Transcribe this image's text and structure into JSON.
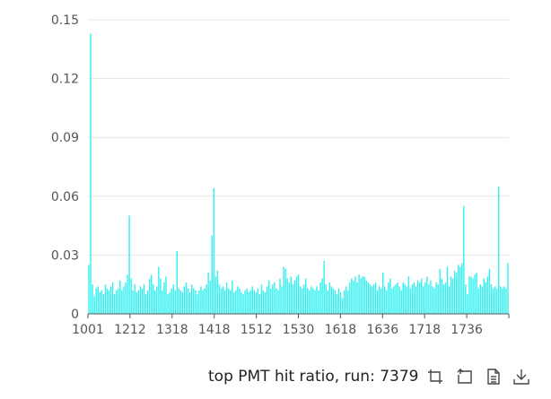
{
  "chart_data": {
    "type": "bar",
    "y_ticks": [
      "0",
      "0.03",
      "0.06",
      "0.09",
      "0.12",
      "0.15"
    ],
    "ylim": [
      0,
      0.15
    ],
    "x_tick_labels": [
      "1001",
      "1212",
      "1318",
      "1418",
      "1512",
      "1530",
      "1618",
      "1636",
      "1718",
      "1736"
    ],
    "bar_color": "#33f0f0",
    "grid": true,
    "values": [
      0.025,
      0.143,
      0.015,
      0.009,
      0.013,
      0.014,
      0.011,
      0.012,
      0.01,
      0.015,
      0.013,
      0.012,
      0.014,
      0.016,
      0.01,
      0.012,
      0.013,
      0.017,
      0.012,
      0.014,
      0.016,
      0.02,
      0.05,
      0.018,
      0.012,
      0.015,
      0.011,
      0.012,
      0.014,
      0.013,
      0.015,
      0.01,
      0.012,
      0.018,
      0.02,
      0.015,
      0.012,
      0.014,
      0.024,
      0.018,
      0.012,
      0.016,
      0.019,
      0.01,
      0.011,
      0.013,
      0.015,
      0.012,
      0.032,
      0.013,
      0.012,
      0.011,
      0.014,
      0.016,
      0.013,
      0.011,
      0.015,
      0.013,
      0.012,
      0.01,
      0.012,
      0.014,
      0.012,
      0.013,
      0.015,
      0.021,
      0.017,
      0.04,
      0.064,
      0.019,
      0.022,
      0.015,
      0.013,
      0.014,
      0.012,
      0.016,
      0.013,
      0.012,
      0.017,
      0.011,
      0.012,
      0.014,
      0.013,
      0.011,
      0.01,
      0.012,
      0.013,
      0.011,
      0.012,
      0.014,
      0.012,
      0.011,
      0.013,
      0.01,
      0.015,
      0.012,
      0.011,
      0.014,
      0.017,
      0.013,
      0.015,
      0.016,
      0.013,
      0.012,
      0.018,
      0.014,
      0.024,
      0.023,
      0.018,
      0.016,
      0.019,
      0.015,
      0.017,
      0.019,
      0.02,
      0.014,
      0.013,
      0.015,
      0.018,
      0.013,
      0.012,
      0.014,
      0.013,
      0.012,
      0.014,
      0.012,
      0.016,
      0.018,
      0.027,
      0.015,
      0.012,
      0.016,
      0.014,
      0.013,
      0.012,
      0.01,
      0.013,
      0.011,
      0.008,
      0.012,
      0.014,
      0.012,
      0.016,
      0.018,
      0.017,
      0.019,
      0.016,
      0.02,
      0.018,
      0.019,
      0.019,
      0.017,
      0.016,
      0.015,
      0.014,
      0.015,
      0.016,
      0.012,
      0.014,
      0.013,
      0.021,
      0.014,
      0.012,
      0.016,
      0.018,
      0.013,
      0.014,
      0.015,
      0.016,
      0.014,
      0.012,
      0.016,
      0.015,
      0.014,
      0.019,
      0.013,
      0.015,
      0.016,
      0.014,
      0.017,
      0.016,
      0.018,
      0.014,
      0.016,
      0.019,
      0.015,
      0.017,
      0.014,
      0.013,
      0.016,
      0.015,
      0.023,
      0.018,
      0.015,
      0.016,
      0.024,
      0.014,
      0.019,
      0.018,
      0.022,
      0.021,
      0.025,
      0.024,
      0.026,
      0.055,
      0.015,
      0.01,
      0.019,
      0.019,
      0.018,
      0.02,
      0.021,
      0.013,
      0.015,
      0.014,
      0.018,
      0.016,
      0.019,
      0.023,
      0.015,
      0.013,
      0.014,
      0.013,
      0.065,
      0.014,
      0.013,
      0.014,
      0.013,
      0.026
    ]
  },
  "footer": {
    "caption": "top PMT hit ratio, run: 7379",
    "tools": [
      {
        "icon": "zoom-select-icon"
      },
      {
        "icon": "zoom-reset-icon"
      },
      {
        "icon": "data-view-icon"
      },
      {
        "icon": "download-icon"
      }
    ]
  }
}
